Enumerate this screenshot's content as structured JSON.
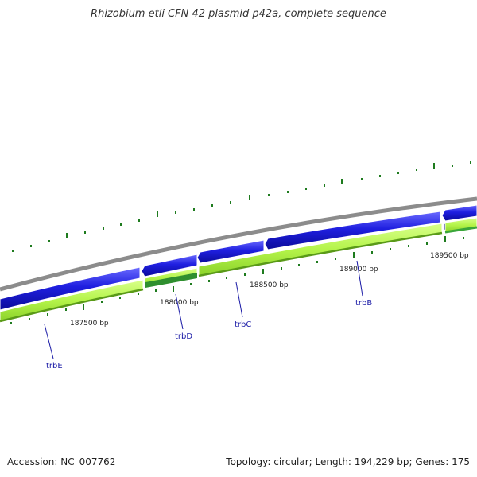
{
  "title": "Rhizobium etli CFN 42 plasmid p42a, complete sequence",
  "footer": {
    "accession": "Accession: NC_007762",
    "summary": "Topology: circular; Length: 194,229 bp; Genes: 175"
  },
  "ruler": {
    "unit": "bp",
    "labels": [
      "187500 bp",
      "188000 bp",
      "188500 bp",
      "189000 bp",
      "189500 bp"
    ]
  },
  "genes": [
    {
      "name": "trbE"
    },
    {
      "name": "trbD"
    },
    {
      "name": "trbC"
    },
    {
      "name": "trbB"
    }
  ],
  "colors": {
    "backbone": "#8c8c8c",
    "cds_forward": "#1f1fe0",
    "cds_forward_dark": "#10108a",
    "gene_track": "#b4f44a",
    "gene_track_edge": "#5a9a18",
    "gene_track_dark": "#2f8f2f",
    "tick": "#1e7b1e",
    "leader_line": "#1a1aa6",
    "label_text": "#1a1aa6"
  }
}
